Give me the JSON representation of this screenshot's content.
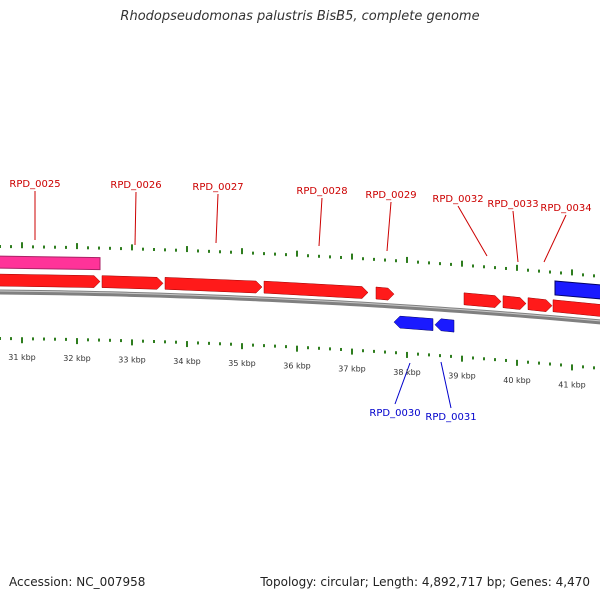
{
  "title": "Rhodopseudomonas palustris BisB5, complete genome",
  "footer": {
    "accession": "Accession: NC_007958",
    "summary": "Topology: circular; Length: 4,892,717 bp; Genes: 4,470"
  },
  "colors": {
    "forward_gene": "#ff1a1a",
    "reverse_gene": "#1a1aff",
    "other_feature": "#ff3399",
    "backbone": "#808080",
    "tick": "#2e7d1e",
    "forward_label": "#cc0000",
    "reverse_label": "#0000cc"
  },
  "tick_labels": [
    "31 kbp",
    "32 kbp",
    "33 kbp",
    "34 kbp",
    "35 kbp",
    "36 kbp",
    "37 kbp",
    "38 kbp",
    "39 kbp",
    "40 kbp",
    "41 kbp"
  ],
  "genes": [
    {
      "name": "RPD_0025",
      "strand": "+"
    },
    {
      "name": "RPD_0026",
      "strand": "+"
    },
    {
      "name": "RPD_0027",
      "strand": "+"
    },
    {
      "name": "RPD_0028",
      "strand": "+"
    },
    {
      "name": "RPD_0029",
      "strand": "+"
    },
    {
      "name": "RPD_0030",
      "strand": "-"
    },
    {
      "name": "RPD_0031",
      "strand": "-"
    },
    {
      "name": "RPD_0032",
      "strand": "+"
    },
    {
      "name": "RPD_0033",
      "strand": "+"
    },
    {
      "name": "RPD_0034",
      "strand": "+"
    }
  ]
}
